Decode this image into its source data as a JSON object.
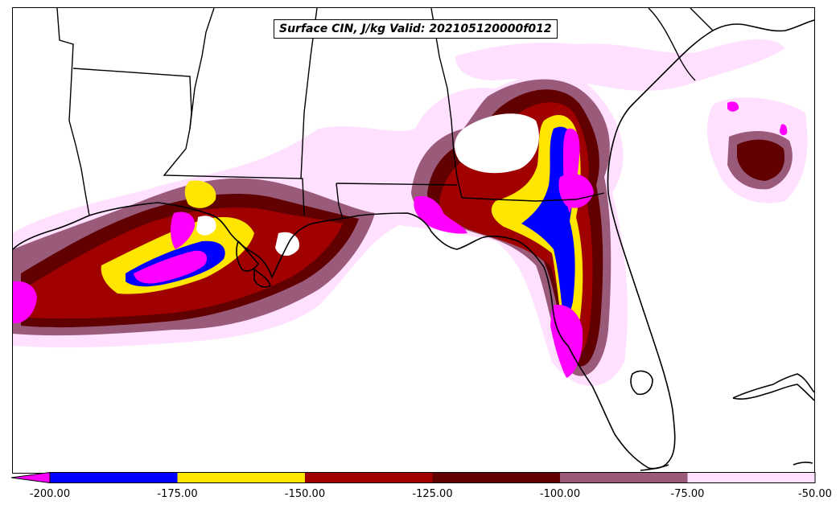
{
  "title": "Surface CIN, J/kg Valid: 202105120000f012",
  "colorbar": {
    "extend": "min",
    "bins": [
      {
        "from": -200,
        "to": -175,
        "color": "#0000ff"
      },
      {
        "from": -175,
        "to": -150,
        "color": "#ffe600"
      },
      {
        "from": -150,
        "to": -125,
        "color": "#a00000"
      },
      {
        "from": -125,
        "to": -100,
        "color": "#600000"
      },
      {
        "from": -100,
        "to": -75,
        "color": "#9a5a7a"
      },
      {
        "from": -75,
        "to": -50,
        "color": "#ffe0ff"
      }
    ],
    "below_color": "#ff00ff",
    "tick_labels": [
      "-200.00",
      "-175.00",
      "-150.00",
      "-125.00",
      "-100.00",
      "-75.00",
      "-50.00"
    ]
  },
  "colors": {
    "coastline": "#000000",
    "boundary": "#000000"
  }
}
